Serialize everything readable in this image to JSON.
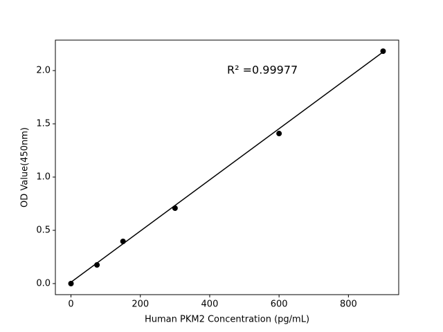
{
  "chart_data": {
    "type": "scatter",
    "xlabel": "Human PKM2 Concentration (pg/mL)",
    "ylabel": "OD Value(450nm)",
    "annotation": "R² =0.99977",
    "xlim": [
      -45,
      945
    ],
    "ylim": [
      -0.104,
      2.286
    ],
    "xticks": [
      0,
      200,
      400,
      600,
      800
    ],
    "yticks": [
      {
        "value": 0,
        "label": "0.0"
      },
      {
        "value": 0.5,
        "label": "0.5"
      },
      {
        "value": 1,
        "label": "1.0"
      },
      {
        "value": 1.5,
        "label": "1.5"
      },
      {
        "value": 2,
        "label": "2.0"
      }
    ],
    "series": [
      {
        "style": "markers",
        "color": "#000000",
        "x": [
          0,
          75,
          150,
          300,
          600,
          900
        ],
        "values": [
          0.0,
          0.175,
          0.396,
          0.708,
          1.409,
          2.182
        ]
      },
      {
        "style": "line",
        "color": "#000000",
        "x": [
          0,
          900
        ],
        "values": [
          0.013,
          2.175
        ]
      }
    ]
  }
}
